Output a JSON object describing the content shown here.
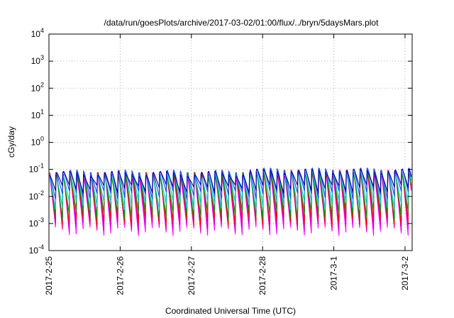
{
  "chart_data": {
    "type": "line",
    "title": "/data/run/goesPlots/archive/2017-03-02/01:00/flux/../bryn/5daysMars.plot",
    "xlabel": "Coordinated Universal Time (UTC)",
    "ylabel": "cGy/day",
    "yscale": "log",
    "ylim": [
      0.0001,
      10000
    ],
    "xlim_days": [
      0,
      5.1
    ],
    "grid": true,
    "x_ticks": [
      {
        "label": "2017-2-25",
        "day": 0
      },
      {
        "label": "2017-2-26",
        "day": 1
      },
      {
        "label": "2017-2-27",
        "day": 2
      },
      {
        "label": "2017-2-28",
        "day": 3
      },
      {
        "label": "2017-3-1",
        "day": 4
      },
      {
        "label": "2017-3-2",
        "day": 5
      }
    ],
    "y_ticks": [
      {
        "base": "10",
        "exp": "-4",
        "value": 0.0001
      },
      {
        "base": "10",
        "exp": "-3",
        "value": 0.001
      },
      {
        "base": "10",
        "exp": "-2",
        "value": 0.01
      },
      {
        "base": "10",
        "exp": "-1",
        "value": 0.1
      },
      {
        "base": "10",
        "exp": "0",
        "value": 1
      },
      {
        "base": "10",
        "exp": "1",
        "value": 10
      },
      {
        "base": "10",
        "exp": "2",
        "value": 100
      },
      {
        "base": "10",
        "exp": "3",
        "value": 1000
      },
      {
        "base": "10",
        "exp": "4",
        "value": 10000
      }
    ],
    "cycles_per_day": 10.3,
    "series": [
      {
        "color": "#ff00ff",
        "peak": 0.052,
        "trough": 0.00055
      },
      {
        "color": "#cc00cc",
        "peak": 0.055,
        "trough": 0.0008
      },
      {
        "color": "#ff0000",
        "peak": 0.062,
        "trough": 0.0012
      },
      {
        "color": "#009900",
        "peak": 0.058,
        "trough": 0.0022
      },
      {
        "color": "#00cccc",
        "peak": 0.065,
        "trough": 0.005
      },
      {
        "color": "#2244ff",
        "peak": 0.075,
        "trough": 0.012
      },
      {
        "color": "#0000aa",
        "peak": 0.068,
        "trough": 0.02
      }
    ]
  }
}
